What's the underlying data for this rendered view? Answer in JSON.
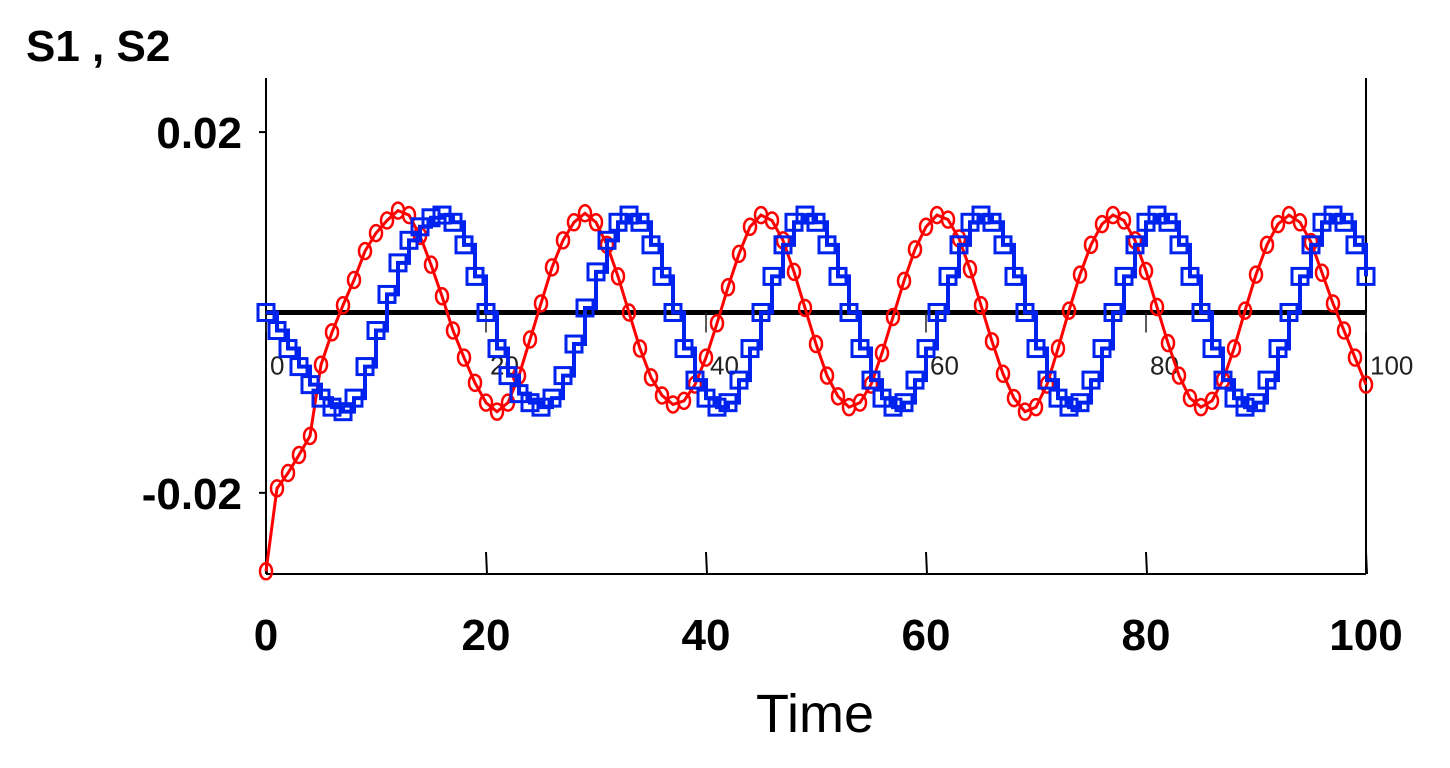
{
  "chart_data": {
    "type": "line",
    "title": "",
    "ylabel": "S1 , S2",
    "xlabel": "Time",
    "xlim": [
      0,
      100
    ],
    "ylim": [
      -0.029,
      0.026
    ],
    "x_ticks": [
      "0",
      "20",
      "40",
      "60",
      "80",
      "100"
    ],
    "y_ticks": [
      "0.02",
      "-0.02"
    ],
    "y_tick_values": [
      0.02,
      -0.02
    ],
    "inner_axis_ticks": [
      "0",
      "20",
      "40",
      "60",
      "80",
      "100"
    ],
    "grid": false,
    "zero_line": true,
    "series": [
      {
        "marker": "circle",
        "color": "#ff0000",
        "x": [
          0,
          1,
          2,
          3,
          4,
          5,
          6,
          7,
          8,
          9,
          10,
          11,
          12,
          13,
          14,
          15,
          16,
          17,
          18,
          19,
          20,
          21,
          22,
          23,
          24,
          25,
          26,
          27,
          28,
          29,
          30,
          31,
          32,
          33,
          34,
          35,
          36,
          37,
          38,
          39,
          40,
          41,
          42,
          43,
          44,
          45,
          46,
          47,
          48,
          49,
          50,
          51,
          52,
          53,
          54,
          55,
          56,
          57,
          58,
          59,
          60,
          61,
          62,
          63,
          64,
          65,
          66,
          67,
          68,
          69,
          70,
          71,
          72,
          73,
          74,
          75,
          76,
          77,
          78,
          79,
          80,
          81,
          82,
          83,
          84,
          85,
          86,
          87,
          88,
          89,
          90,
          91,
          92,
          93,
          94,
          95,
          96,
          97,
          98,
          99,
          100
        ],
        "y": [
          -0.0287,
          -0.0195,
          -0.0178,
          -0.0158,
          -0.0137,
          -0.0058,
          -0.0022,
          0.0008,
          0.0036,
          0.0068,
          0.0088,
          0.0102,
          0.0113,
          0.0108,
          0.0085,
          0.0053,
          0.0018,
          -0.002,
          -0.005,
          -0.0078,
          -0.01,
          -0.011,
          -0.01,
          -0.007,
          -0.003,
          0.001,
          0.005,
          0.008,
          0.01,
          0.011,
          0.01,
          0.0075,
          0.004,
          0.0,
          -0.004,
          -0.0072,
          -0.0092,
          -0.0102,
          -0.0098,
          -0.008,
          -0.005,
          -0.0012,
          0.0028,
          0.0065,
          0.0095,
          0.0108,
          0.0102,
          0.008,
          0.0045,
          0.0005,
          -0.0035,
          -0.007,
          -0.0093,
          -0.0105,
          -0.01,
          -0.008,
          -0.0045,
          -0.0005,
          0.0035,
          0.007,
          0.0095,
          0.0108,
          0.0103,
          0.0082,
          0.0048,
          0.0008,
          -0.0032,
          -0.0068,
          -0.0095,
          -0.011,
          -0.0105,
          -0.008,
          -0.004,
          0.0002,
          0.0042,
          0.0075,
          0.0098,
          0.0108,
          0.0102,
          0.008,
          0.0046,
          0.0006,
          -0.0034,
          -0.007,
          -0.0095,
          -0.0105,
          -0.0098,
          -0.0075,
          -0.004,
          0.0002,
          0.0042,
          0.0075,
          0.0098,
          0.0108,
          0.01,
          0.0078,
          0.0044,
          0.001,
          -0.002,
          -0.005,
          -0.008
        ]
      },
      {
        "marker": "square",
        "color": "#0022ee",
        "x": [
          0,
          1,
          2,
          3,
          4,
          5,
          6,
          7,
          8,
          9,
          10,
          11,
          12,
          13,
          14,
          15,
          16,
          17,
          18,
          19,
          20,
          21,
          22,
          23,
          24,
          25,
          26,
          27,
          28,
          29,
          30,
          31,
          32,
          33,
          34,
          35,
          36,
          37,
          38,
          39,
          40,
          41,
          42,
          43,
          44,
          45,
          46,
          47,
          48,
          49,
          50,
          51,
          52,
          53,
          54,
          55,
          56,
          57,
          58,
          59,
          60,
          61,
          62,
          63,
          64,
          65,
          66,
          67,
          68,
          69,
          70,
          71,
          72,
          73,
          74,
          75,
          76,
          77,
          78,
          79,
          80,
          81,
          82,
          83,
          84,
          85,
          86,
          87,
          88,
          89,
          90,
          91,
          92,
          93,
          94,
          95,
          96,
          97,
          98,
          99,
          100
        ],
        "y": [
          0.0,
          -0.002,
          -0.004,
          -0.006,
          -0.008,
          -0.0095,
          -0.0105,
          -0.011,
          -0.0095,
          -0.006,
          -0.002,
          0.002,
          0.0055,
          0.008,
          0.0095,
          0.0105,
          0.0108,
          0.01,
          0.0075,
          0.004,
          0.0,
          -0.004,
          -0.007,
          -0.009,
          -0.01,
          -0.0105,
          -0.0095,
          -0.007,
          -0.0035,
          0.0005,
          0.0045,
          0.008,
          0.01,
          0.0108,
          0.01,
          0.0075,
          0.004,
          0.0,
          -0.004,
          -0.0075,
          -0.0095,
          -0.0105,
          -0.01,
          -0.0075,
          -0.004,
          0.0,
          0.004,
          0.0075,
          0.01,
          0.0108,
          0.01,
          0.0075,
          0.004,
          0.0,
          -0.004,
          -0.0075,
          -0.0095,
          -0.0105,
          -0.01,
          -0.0075,
          -0.004,
          0.0,
          0.004,
          0.0075,
          0.01,
          0.0108,
          0.01,
          0.0075,
          0.004,
          0.0,
          -0.004,
          -0.0075,
          -0.0095,
          -0.0105,
          -0.01,
          -0.0075,
          -0.004,
          0.0,
          0.004,
          0.0075,
          0.01,
          0.0108,
          0.01,
          0.0075,
          0.004,
          0.0,
          -0.004,
          -0.0075,
          -0.0095,
          -0.0105,
          -0.01,
          -0.0075,
          -0.004,
          0.0,
          0.004,
          0.0075,
          0.01,
          0.0108,
          0.01,
          0.0075,
          0.004
        ]
      }
    ]
  }
}
